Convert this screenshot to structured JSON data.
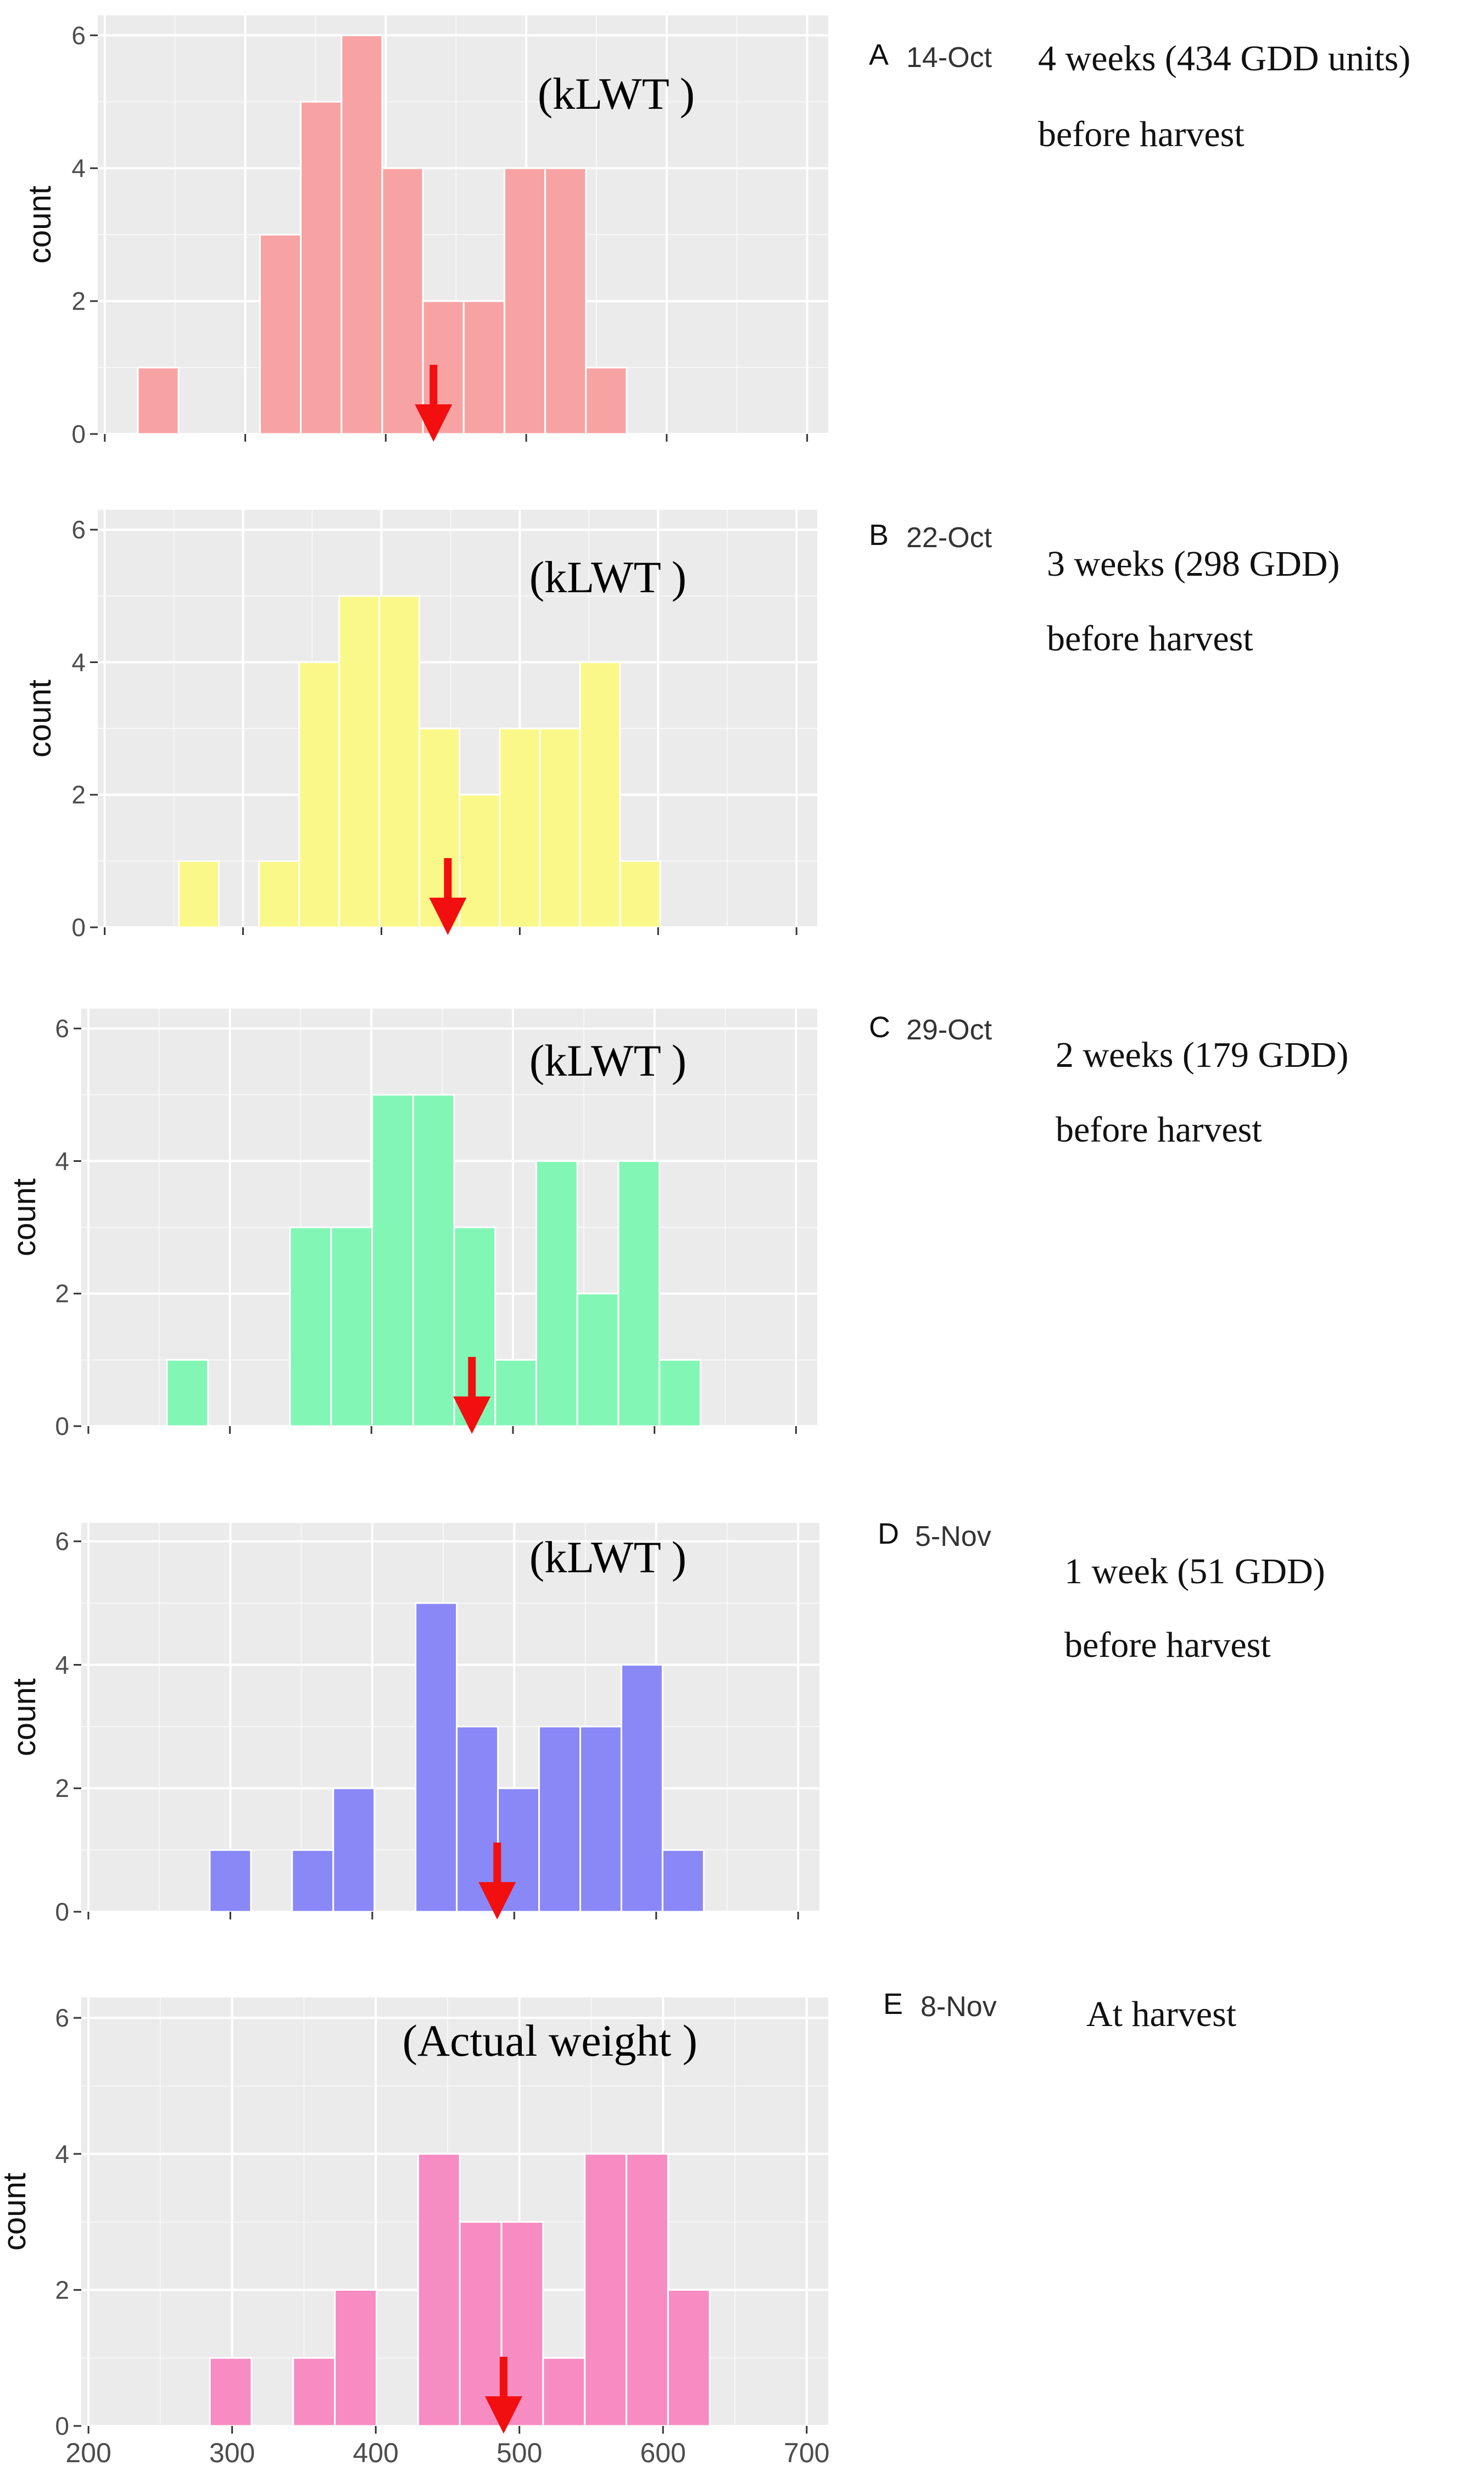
{
  "figure": {
    "x_tick_labels": [
      "200",
      "300",
      "400",
      "500",
      "600",
      "700"
    ],
    "x_ticks": [
      200,
      300,
      400,
      500,
      600,
      700
    ],
    "y_ticks": [
      0,
      2,
      4,
      6
    ],
    "bin_width": 29,
    "arrow_color": "#f20f0f",
    "panel_bg": "#ebebeb",
    "grid_color": "#ffffff"
  },
  "chart_data": [
    {
      "type": "bar",
      "panel": "A",
      "date": "14-Oct",
      "inset_label": "(kLWT )",
      "description_line1": "4 weeks (434 GDD units)",
      "description_line2": "before harvest",
      "ylabel": "count",
      "xlabel": "",
      "xlim": [
        195,
        715
      ],
      "ylim": [
        0,
        6.3
      ],
      "color": "#f8a3a3",
      "bin_centers": [
        238,
        325,
        354,
        383,
        412,
        441,
        470,
        499,
        528,
        557,
        586
      ],
      "counts": [
        1,
        3,
        5,
        6,
        4,
        2,
        2,
        4,
        4,
        1,
        0
      ],
      "arrow_x": 434
    },
    {
      "type": "bar",
      "panel": "B",
      "date": "22-Oct",
      "inset_label": "(kLWT )",
      "description_line1": "3 weeks (298 GDD)",
      "description_line2": "before harvest",
      "ylabel": "count",
      "xlabel": "",
      "xlim": [
        195,
        715
      ],
      "ylim": [
        0,
        6.3
      ],
      "color": "#fbf88a",
      "bin_centers": [
        268,
        326,
        355,
        384,
        413,
        442,
        471,
        500,
        529,
        558,
        587
      ],
      "counts": [
        1,
        1,
        4,
        5,
        5,
        3,
        2,
        3,
        3,
        4,
        1
      ],
      "arrow_x": 448
    },
    {
      "type": "bar",
      "panel": "C",
      "date": "29-Oct",
      "inset_label": "(kLWT )",
      "description_line1": "2 weeks (179 GDD)",
      "description_line2": "before harvest",
      "ylabel": "count",
      "xlabel": "",
      "xlim": [
        195,
        715
      ],
      "ylim": [
        0,
        6.3
      ],
      "color": "#82f6b5",
      "bin_centers": [
        270,
        357,
        386,
        415,
        444,
        473,
        502,
        531,
        560,
        589,
        618
      ],
      "counts": [
        1,
        3,
        3,
        5,
        5,
        3,
        1,
        4,
        2,
        4,
        1
      ],
      "arrow_x": 471
    },
    {
      "type": "bar",
      "panel": "D",
      "date": "5-Nov",
      "inset_label": "(kLWT )",
      "description_line1": "1 week (51 GDD)",
      "description_line2": "before harvest",
      "ylabel": "count",
      "xlabel": "",
      "xlim": [
        195,
        715
      ],
      "ylim": [
        0,
        6.3
      ],
      "color": "#8a88f7",
      "bin_centers": [
        300,
        358,
        387,
        445,
        474,
        503,
        532,
        561,
        590,
        619
      ],
      "counts": [
        1,
        1,
        2,
        5,
        3,
        2,
        3,
        3,
        4,
        1
      ],
      "arrow_x": 488
    },
    {
      "type": "bar",
      "panel": "E",
      "date": "8-Nov",
      "inset_label": "(Actual weight )",
      "description_line1": "At harvest",
      "description_line2": "",
      "ylabel": "count",
      "xlabel": "",
      "xlim": [
        195,
        715
      ],
      "ylim": [
        0,
        6.3
      ],
      "color": "#f78cc2",
      "bin_centers": [
        299,
        357,
        386,
        444,
        473,
        502,
        531,
        560,
        589,
        618
      ],
      "counts": [
        1,
        1,
        2,
        4,
        3,
        3,
        1,
        4,
        4,
        2
      ],
      "arrow_x": 489
    }
  ]
}
